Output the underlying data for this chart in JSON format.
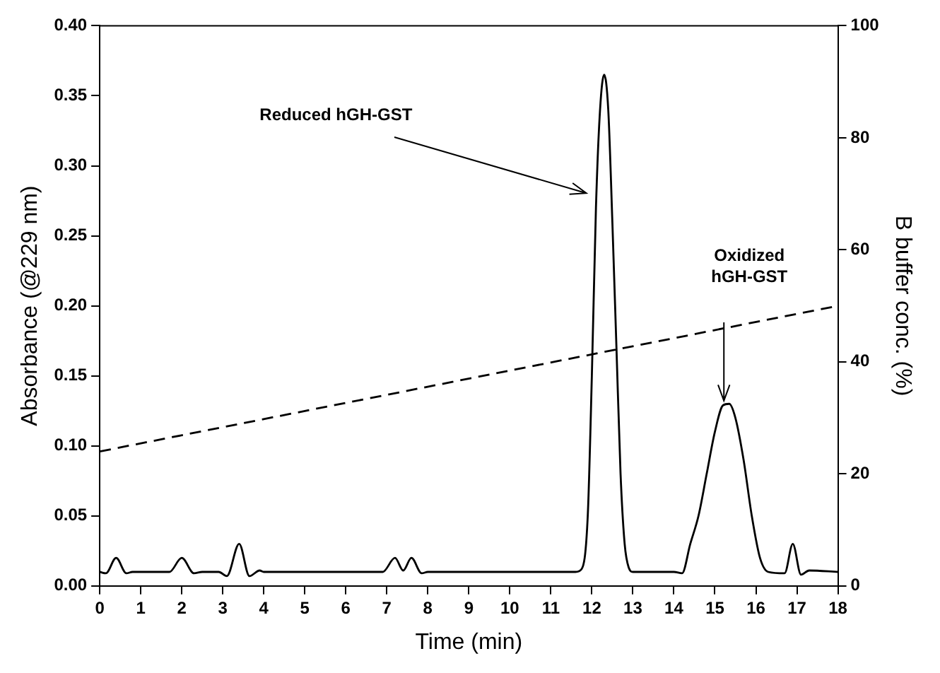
{
  "chart_data": {
    "type": "line",
    "xlabel": "Time (min)",
    "ylabel": "Absorbance (@229 nm)",
    "y2label": "B buffer conc. (%)",
    "xlim": [
      0,
      18
    ],
    "xticks": [
      0,
      1,
      2,
      3,
      4,
      5,
      6,
      7,
      8,
      9,
      10,
      11,
      12,
      13,
      14,
      15,
      16,
      17,
      18
    ],
    "ylim": [
      0,
      0.4
    ],
    "yticks": [
      {
        "value": 0,
        "label": "0.00"
      },
      {
        "value": 0.05,
        "label": "0.05"
      },
      {
        "value": 0.1,
        "label": "0.10"
      },
      {
        "value": 0.15,
        "label": "0.15"
      },
      {
        "value": 0.2,
        "label": "0.20"
      },
      {
        "value": 0.25,
        "label": "0.25"
      },
      {
        "value": 0.3,
        "label": "0.30"
      },
      {
        "value": 0.35,
        "label": "0.35"
      },
      {
        "value": 0.4,
        "label": "0.40"
      }
    ],
    "y2lim": [
      0,
      100
    ],
    "y2ticks": [
      0,
      20,
      40,
      60,
      80,
      100
    ],
    "grid": false,
    "legend": false,
    "marker": "none",
    "series": [
      {
        "color": "#000000",
        "line_style": "solid",
        "x": [
          0,
          0.15,
          0.4,
          0.65,
          0.8,
          1.7,
          2.0,
          2.3,
          2.5,
          2.9,
          3.1,
          3.4,
          3.65,
          3.9,
          4.0,
          6.9,
          7.2,
          7.4,
          7.6,
          7.85,
          8.0,
          11.6,
          11.75,
          11.9,
          12.0,
          12.1,
          12.2,
          12.3,
          12.4,
          12.5,
          12.6,
          12.7,
          12.8,
          12.9,
          13.0,
          14.0,
          14.2,
          14.4,
          14.6,
          14.8,
          15.0,
          15.2,
          15.35,
          15.5,
          15.7,
          15.9,
          16.1,
          16.3,
          16.7,
          16.9,
          17.1,
          17.3,
          18
        ],
        "values": [
          0.01,
          0.009,
          0.02,
          0.009,
          0.01,
          0.01,
          0.02,
          0.009,
          0.01,
          0.01,
          0.007,
          0.03,
          0.007,
          0.011,
          0.01,
          0.01,
          0.02,
          0.011,
          0.02,
          0.009,
          0.01,
          0.01,
          0.012,
          0.05,
          0.15,
          0.27,
          0.34,
          0.365,
          0.34,
          0.26,
          0.17,
          0.08,
          0.03,
          0.013,
          0.01,
          0.01,
          0.009,
          0.03,
          0.05,
          0.08,
          0.11,
          0.129,
          0.13,
          0.12,
          0.09,
          0.05,
          0.02,
          0.01,
          0.009,
          0.03,
          0.008,
          0.011,
          0.01
        ]
      },
      {
        "color": "#000000",
        "line_style": "dashed",
        "axis": "y2",
        "x": [
          0,
          18
        ],
        "values": [
          24,
          50
        ]
      }
    ],
    "annotations": [
      "Reduced hGH-GST",
      "Oxidized\nhGH-GST"
    ]
  }
}
